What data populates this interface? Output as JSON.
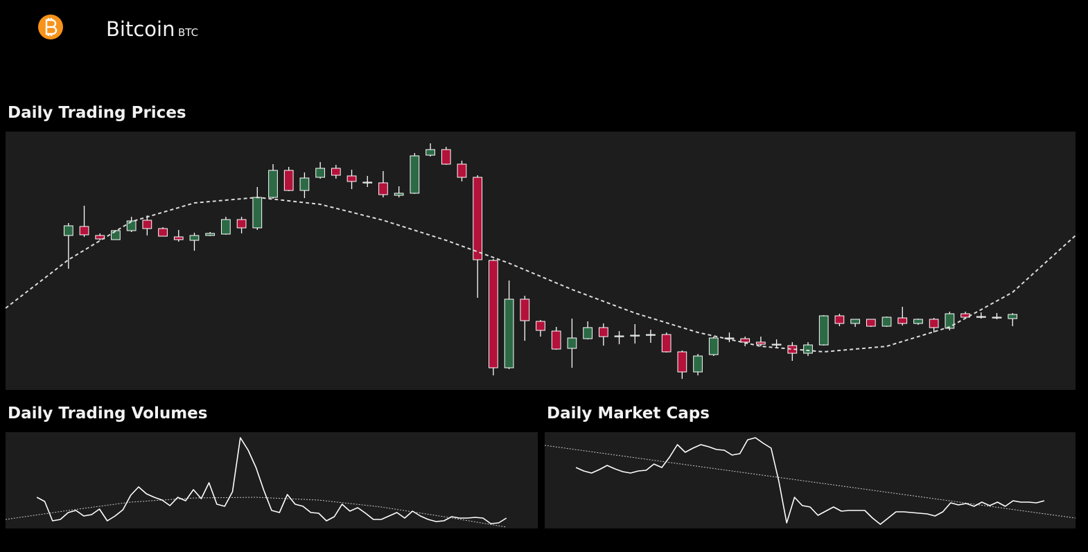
{
  "header": {
    "title": "Bitcoin",
    "symbol": "BTC"
  },
  "chart_data": [
    {
      "type": "candlestick",
      "title": "Daily Trading Prices",
      "x": [
        0,
        1,
        2,
        3,
        4,
        5,
        6,
        7,
        8,
        9,
        10,
        11,
        12,
        13,
        14,
        15,
        16,
        17,
        18,
        19,
        20,
        21,
        22,
        23,
        24,
        25,
        26,
        27,
        28,
        29,
        30,
        31,
        32,
        33,
        34,
        35,
        36,
        37,
        38,
        39,
        40,
        41,
        42,
        43,
        44,
        45,
        46,
        47,
        48,
        49,
        50,
        51,
        52,
        53,
        54,
        55,
        56,
        57,
        58,
        59,
        60
      ],
      "open": [
        223,
        236,
        223,
        217,
        230,
        245,
        233,
        221,
        216,
        223,
        225,
        246,
        234,
        278,
        317,
        288,
        307,
        320,
        309,
        300,
        299,
        281,
        284,
        339,
        347,
        326,
        307,
        187,
        32,
        131,
        99,
        85,
        60,
        74,
        90,
        78,
        79,
        80,
        80,
        55,
        26,
        51,
        75,
        74,
        69,
        66,
        64,
        53,
        65,
        107,
        96,
        102,
        92,
        104,
        96,
        102,
        89,
        110,
        106,
        105,
        103
      ],
      "high": [
        241,
        266,
        226,
        231,
        250,
        252,
        235,
        231,
        227,
        228,
        250,
        250,
        293,
        326,
        322,
        314,
        329,
        325,
        318,
        309,
        316,
        294,
        342,
        356,
        351,
        331,
        310,
        189,
        158,
        136,
        101,
        91,
        103,
        99,
        96,
        85,
        95,
        87,
        83,
        57,
        52,
        77,
        83,
        77,
        77,
        73,
        69,
        69,
        108,
        110,
        102,
        102,
        106,
        120,
        103,
        104,
        113,
        113,
        112,
        111,
        111
      ],
      "low": [
        175,
        221,
        216,
        217,
        228,
        223,
        222,
        214,
        201,
        222,
        224,
        226,
        231,
        276,
        287,
        277,
        305,
        305,
        290,
        293,
        278,
        278,
        283,
        337,
        325,
        301,
        133,
        21,
        30,
        71,
        77,
        58,
        32,
        73,
        64,
        66,
        67,
        68,
        54,
        16,
        21,
        49,
        69,
        63,
        63,
        61,
        42,
        49,
        64,
        92,
        91,
        91,
        91,
        93,
        94,
        83,
        86,
        103,
        103,
        102,
        92
      ],
      "close": [
        237,
        224,
        218,
        230,
        244,
        233,
        222,
        217,
        223,
        226,
        246,
        234,
        278,
        317,
        288,
        306,
        320,
        310,
        301,
        300,
        282,
        284,
        338,
        347,
        326,
        307,
        188,
        32,
        131,
        100,
        86,
        59,
        75,
        90,
        77,
        78,
        79,
        80,
        55,
        26,
        49,
        75,
        75,
        69,
        66,
        66,
        53,
        65,
        107,
        96,
        102,
        92,
        105,
        96,
        102,
        90,
        110,
        105,
        106,
        105,
        109
      ],
      "up_color": "#2b6a45",
      "down_color": "#b3123b",
      "trend": {
        "x": [
          -4,
          0,
          4,
          8,
          12,
          16,
          20,
          24,
          28,
          32,
          36,
          40,
          44,
          48,
          52,
          56,
          60,
          64
        ],
        "values": [
          118,
          188,
          243,
          270,
          278,
          268,
          245,
          216,
          183,
          145,
          111,
          83,
          63,
          55,
          63,
          91,
          141,
          223
        ],
        "color": "#dddddd",
        "style": "dashed"
      },
      "xlim": [
        -4,
        64
      ],
      "ylim": [
        0,
        373
      ]
    },
    {
      "type": "line",
      "title": "Daily Trading Volumes",
      "x": [
        0,
        1,
        2,
        3,
        4,
        5,
        6,
        7,
        8,
        9,
        10,
        11,
        12,
        13,
        14,
        15,
        16,
        17,
        18,
        19,
        20,
        21,
        22,
        23,
        24,
        25,
        26,
        27,
        28,
        29,
        30,
        31,
        32,
        33,
        34,
        35,
        36,
        37,
        38,
        39,
        40,
        41,
        42,
        43,
        44,
        45,
        46,
        47,
        48,
        49,
        50,
        51,
        52,
        53,
        54,
        55,
        56,
        57,
        58,
        59,
        60
      ],
      "series": [
        {
          "color": "#ffffff",
          "values": [
            45,
            39,
            11,
            13,
            23,
            26,
            18,
            20,
            28,
            11,
            18,
            27,
            48,
            60,
            50,
            45,
            41,
            33,
            45,
            40,
            56,
            43,
            66,
            35,
            32,
            53,
            131,
            113,
            88,
            55,
            26,
            23,
            49,
            35,
            32,
            23,
            22,
            11,
            17,
            35,
            25,
            30,
            22,
            13,
            13,
            18,
            23,
            15,
            25,
            18,
            13,
            10,
            11,
            17,
            15,
            15,
            16,
            15,
            7,
            8,
            15
          ]
        }
      ],
      "trend": {
        "x": [
          -4,
          4,
          12,
          20,
          28,
          36,
          44,
          52,
          60
        ],
        "values": [
          13,
          26,
          38,
          44,
          45,
          41,
          31,
          17,
          2
        ],
        "color": "#cccccc",
        "style": "dotted"
      },
      "xlim": [
        -4,
        64
      ],
      "ylim": [
        0,
        139
      ]
    },
    {
      "type": "line",
      "title": "Daily Market Caps",
      "x": [
        0,
        1,
        2,
        3,
        4,
        5,
        6,
        7,
        8,
        9,
        10,
        11,
        12,
        13,
        14,
        15,
        16,
        17,
        18,
        19,
        20,
        21,
        22,
        23,
        24,
        25,
        26,
        27,
        28,
        29,
        30,
        31,
        32,
        33,
        34,
        35,
        36,
        37,
        38,
        39,
        40,
        41,
        42,
        43,
        44,
        45,
        46,
        47,
        48,
        49,
        50,
        51,
        52,
        53,
        54,
        55,
        56,
        57,
        58,
        59,
        60
      ],
      "series": [
        {
          "color": "#ffffff",
          "values": [
            88,
            83,
            80,
            85,
            91,
            86,
            82,
            80,
            83,
            84,
            93,
            88,
            103,
            121,
            110,
            116,
            121,
            118,
            114,
            113,
            106,
            108,
            128,
            131,
            123,
            116,
            68,
            8,
            45,
            33,
            31,
            19,
            25,
            31,
            25,
            26,
            26,
            26,
            15,
            6,
            15,
            24,
            24,
            23,
            22,
            21,
            18,
            24,
            37,
            34,
            36,
            32,
            38,
            33,
            38,
            32,
            40,
            38,
            38,
            37,
            40
          ]
        }
      ],
      "trend": {
        "x": [
          -4,
          64
        ],
        "values": [
          120,
          15
        ],
        "color": "#cccccc",
        "style": "dotted"
      },
      "xlim": [
        -4,
        64
      ],
      "ylim": [
        0,
        139
      ]
    }
  ]
}
